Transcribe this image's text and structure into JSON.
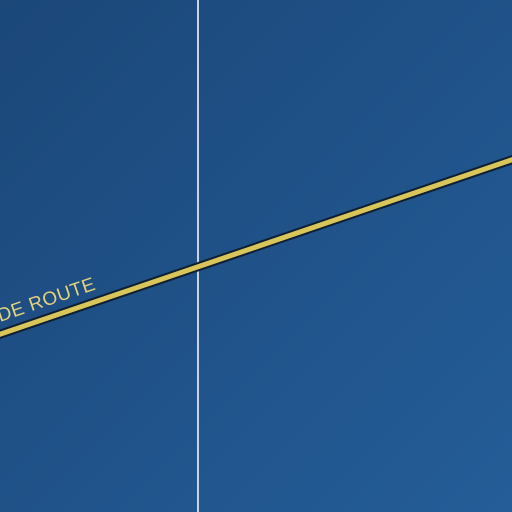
{
  "map": {
    "colors": {
      "water_top_left": "#1b4779",
      "water_bottom_right": "#245d98",
      "route_fill": "#d9c65a",
      "route_outline": "#0f1f33",
      "gridline": "#c8d4e2",
      "label": "#e3d27a"
    },
    "route": {
      "label": "DE ROUTE"
    }
  }
}
